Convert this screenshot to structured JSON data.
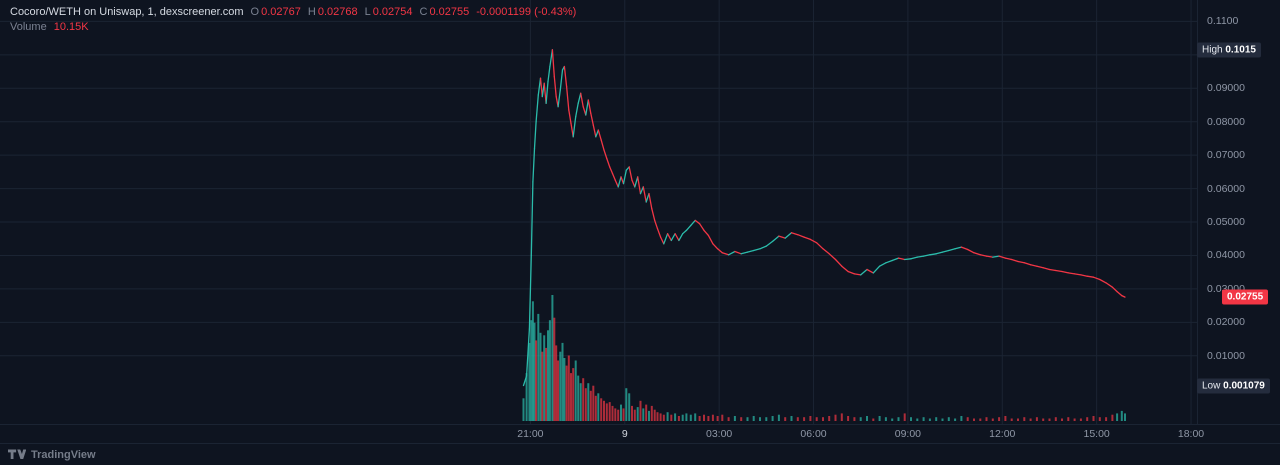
{
  "colors": {
    "background": "#0e1420",
    "grid": "#1b2433",
    "up": "#2bbcab",
    "down": "#f23645",
    "axis_text": "#8f97a6",
    "legend_text": "#d5dae2",
    "legend_label": "#7b8292",
    "badge_bg": "#242c3d",
    "badge_text": "#e6e9ef",
    "last_badge_bg": "#f23645",
    "footer_text": "#757c89",
    "strong_tick": "#d2d6de"
  },
  "header": {
    "symbol": "Cocoro/WETH on Uniswap, 1, dexscreener.com",
    "open_label": "O",
    "open": "0.02767",
    "high_label": "H",
    "high": "0.02768",
    "low_label": "L",
    "low": "0.02754",
    "close_label": "C",
    "close": "0.02755",
    "change": "-0.0001199 (-0.43%)",
    "volume_label": "Volume",
    "volume_value": "10.15K"
  },
  "badges": {
    "high": {
      "label": "High",
      "value": "0.1015",
      "price": 0.1015
    },
    "last": {
      "value": "0.02755",
      "price": 0.02755
    },
    "low": {
      "label": "Low",
      "value": "0.001079",
      "price": 0.001079
    }
  },
  "footer": {
    "brand": "TradingView"
  },
  "chart_data": {
    "type": "line",
    "title": "Cocoro/WETH on Uniswap, 1, dexscreener.com",
    "interval": "1",
    "x_unit": "hours_after_21_00",
    "x_window": [
      -16.86,
      21.19
    ],
    "price_window": [
      -0.0104,
      0.1164
    ],
    "grid": true,
    "high": 0.1015,
    "low": 0.001079,
    "last": 0.02755,
    "x_ticks": [
      {
        "hour": 0,
        "label": "21:00"
      },
      {
        "hour": 3,
        "label": "9",
        "strong": true
      },
      {
        "hour": 6,
        "label": "03:00"
      },
      {
        "hour": 9,
        "label": "06:00"
      },
      {
        "hour": 12,
        "label": "09:00"
      },
      {
        "hour": 15,
        "label": "12:00"
      },
      {
        "hour": 18,
        "label": "15:00"
      },
      {
        "hour": 21,
        "label": "18:00"
      }
    ],
    "y_ticks": [
      {
        "price": 0.11,
        "label": "0.1100"
      },
      {
        "price": 0.1,
        "label": null
      },
      {
        "price": 0.09,
        "label": "0.09000"
      },
      {
        "price": 0.08,
        "label": "0.08000"
      },
      {
        "price": 0.07,
        "label": "0.07000"
      },
      {
        "price": 0.06,
        "label": "0.06000"
      },
      {
        "price": 0.05,
        "label": "0.05000"
      },
      {
        "price": 0.04,
        "label": "0.04000"
      },
      {
        "price": 0.03,
        "label": "0.03000"
      },
      {
        "price": 0.02,
        "label": "0.02000"
      },
      {
        "price": 0.01,
        "label": "0.01000"
      }
    ],
    "price": [
      [
        -0.22,
        0.0011
      ],
      [
        -0.12,
        0.004
      ],
      [
        -0.03,
        0.018
      ],
      [
        0.03,
        0.04
      ],
      [
        0.08,
        0.062
      ],
      [
        0.13,
        0.072
      ],
      [
        0.18,
        0.08
      ],
      [
        0.25,
        0.088
      ],
      [
        0.32,
        0.093
      ],
      [
        0.38,
        0.0875
      ],
      [
        0.44,
        0.0915
      ],
      [
        0.5,
        0.0855
      ],
      [
        0.56,
        0.092
      ],
      [
        0.62,
        0.0965
      ],
      [
        0.7,
        0.1015
      ],
      [
        0.76,
        0.0935
      ],
      [
        0.82,
        0.0875
      ],
      [
        0.88,
        0.0845
      ],
      [
        0.95,
        0.0895
      ],
      [
        1.02,
        0.0955
      ],
      [
        1.08,
        0.0965
      ],
      [
        1.15,
        0.0905
      ],
      [
        1.22,
        0.0835
      ],
      [
        1.29,
        0.0795
      ],
      [
        1.36,
        0.0755
      ],
      [
        1.44,
        0.0815
      ],
      [
        1.52,
        0.0855
      ],
      [
        1.6,
        0.0885
      ],
      [
        1.68,
        0.0845
      ],
      [
        1.76,
        0.082
      ],
      [
        1.84,
        0.0865
      ],
      [
        1.92,
        0.0825
      ],
      [
        2.0,
        0.079
      ],
      [
        2.08,
        0.0755
      ],
      [
        2.16,
        0.0775
      ],
      [
        2.25,
        0.0745
      ],
      [
        2.34,
        0.0715
      ],
      [
        2.43,
        0.069
      ],
      [
        2.52,
        0.0665
      ],
      [
        2.61,
        0.0645
      ],
      [
        2.7,
        0.0625
      ],
      [
        2.79,
        0.0605
      ],
      [
        2.88,
        0.0635
      ],
      [
        2.96,
        0.0615
      ],
      [
        3.05,
        0.0655
      ],
      [
        3.14,
        0.0665
      ],
      [
        3.23,
        0.0625
      ],
      [
        3.32,
        0.0605
      ],
      [
        3.41,
        0.0635
      ],
      [
        3.5,
        0.0585
      ],
      [
        3.59,
        0.0605
      ],
      [
        3.68,
        0.056
      ],
      [
        3.77,
        0.0585
      ],
      [
        3.86,
        0.054
      ],
      [
        3.95,
        0.0505
      ],
      [
        4.04,
        0.048
      ],
      [
        4.14,
        0.0455
      ],
      [
        4.24,
        0.0435
      ],
      [
        4.36,
        0.0465
      ],
      [
        4.48,
        0.0445
      ],
      [
        4.6,
        0.0465
      ],
      [
        4.72,
        0.0445
      ],
      [
        4.84,
        0.0465
      ],
      [
        4.96,
        0.0475
      ],
      [
        5.1,
        0.049
      ],
      [
        5.24,
        0.0505
      ],
      [
        5.38,
        0.0495
      ],
      [
        5.52,
        0.0475
      ],
      [
        5.66,
        0.046
      ],
      [
        5.8,
        0.0435
      ],
      [
        5.95,
        0.042
      ],
      [
        6.1,
        0.0408
      ],
      [
        6.3,
        0.0402
      ],
      [
        6.5,
        0.0412
      ],
      [
        6.7,
        0.0405
      ],
      [
        6.9,
        0.041
      ],
      [
        7.1,
        0.0415
      ],
      [
        7.3,
        0.042
      ],
      [
        7.5,
        0.0428
      ],
      [
        7.7,
        0.0442
      ],
      [
        7.9,
        0.0458
      ],
      [
        8.1,
        0.0452
      ],
      [
        8.3,
        0.0468
      ],
      [
        8.5,
        0.0462
      ],
      [
        8.7,
        0.0455
      ],
      [
        8.9,
        0.0448
      ],
      [
        9.1,
        0.0438
      ],
      [
        9.3,
        0.042
      ],
      [
        9.5,
        0.0405
      ],
      [
        9.7,
        0.0388
      ],
      [
        9.9,
        0.0368
      ],
      [
        10.1,
        0.0352
      ],
      [
        10.3,
        0.0345
      ],
      [
        10.5,
        0.0342
      ],
      [
        10.7,
        0.0358
      ],
      [
        10.9,
        0.0348
      ],
      [
        11.1,
        0.0368
      ],
      [
        11.3,
        0.0378
      ],
      [
        11.5,
        0.0385
      ],
      [
        11.7,
        0.0392
      ],
      [
        11.9,
        0.0388
      ],
      [
        12.1,
        0.039
      ],
      [
        12.3,
        0.0395
      ],
      [
        12.5,
        0.0398
      ],
      [
        12.7,
        0.0402
      ],
      [
        12.9,
        0.0405
      ],
      [
        13.1,
        0.041
      ],
      [
        13.3,
        0.0415
      ],
      [
        13.5,
        0.042
      ],
      [
        13.7,
        0.0425
      ],
      [
        13.9,
        0.0418
      ],
      [
        14.1,
        0.0408
      ],
      [
        14.3,
        0.0402
      ],
      [
        14.5,
        0.0398
      ],
      [
        14.7,
        0.0395
      ],
      [
        14.9,
        0.0398
      ],
      [
        15.1,
        0.0392
      ],
      [
        15.3,
        0.0388
      ],
      [
        15.5,
        0.0382
      ],
      [
        15.7,
        0.0378
      ],
      [
        15.9,
        0.0372
      ],
      [
        16.1,
        0.0368
      ],
      [
        16.3,
        0.0363
      ],
      [
        16.5,
        0.0358
      ],
      [
        16.7,
        0.0355
      ],
      [
        16.9,
        0.0352
      ],
      [
        17.1,
        0.0348
      ],
      [
        17.3,
        0.0345
      ],
      [
        17.5,
        0.0342
      ],
      [
        17.7,
        0.0338
      ],
      [
        17.9,
        0.0335
      ],
      [
        18.1,
        0.0328
      ],
      [
        18.3,
        0.0318
      ],
      [
        18.5,
        0.0305
      ],
      [
        18.65,
        0.0292
      ],
      [
        18.8,
        0.028
      ],
      [
        18.9,
        0.02755
      ]
    ],
    "volume_rel": [
      [
        -0.22,
        0.18,
        "u"
      ],
      [
        -0.12,
        0.38,
        "u"
      ],
      [
        -0.03,
        0.62,
        "u"
      ],
      [
        0.03,
        0.8,
        "u"
      ],
      [
        0.08,
        0.95,
        "u"
      ],
      [
        0.13,
        0.78,
        "u"
      ],
      [
        0.18,
        0.64,
        "d"
      ],
      [
        0.25,
        0.85,
        "u"
      ],
      [
        0.32,
        0.7,
        "u"
      ],
      [
        0.38,
        0.55,
        "d"
      ],
      [
        0.44,
        0.68,
        "u"
      ],
      [
        0.5,
        0.58,
        "d"
      ],
      [
        0.56,
        0.72,
        "u"
      ],
      [
        0.62,
        0.8,
        "u"
      ],
      [
        0.7,
        1.0,
        "u"
      ],
      [
        0.76,
        0.82,
        "d"
      ],
      [
        0.82,
        0.6,
        "d"
      ],
      [
        0.88,
        0.48,
        "d"
      ],
      [
        0.95,
        0.55,
        "u"
      ],
      [
        1.02,
        0.62,
        "u"
      ],
      [
        1.08,
        0.5,
        "u"
      ],
      [
        1.15,
        0.44,
        "d"
      ],
      [
        1.22,
        0.52,
        "d"
      ],
      [
        1.29,
        0.38,
        "d"
      ],
      [
        1.36,
        0.42,
        "d"
      ],
      [
        1.44,
        0.48,
        "u"
      ],
      [
        1.52,
        0.36,
        "u"
      ],
      [
        1.6,
        0.3,
        "u"
      ],
      [
        1.68,
        0.34,
        "d"
      ],
      [
        1.76,
        0.26,
        "d"
      ],
      [
        1.84,
        0.3,
        "u"
      ],
      [
        1.92,
        0.24,
        "d"
      ],
      [
        2.0,
        0.28,
        "d"
      ],
      [
        2.08,
        0.2,
        "d"
      ],
      [
        2.16,
        0.22,
        "u"
      ],
      [
        2.25,
        0.18,
        "d"
      ],
      [
        2.34,
        0.16,
        "d"
      ],
      [
        2.43,
        0.14,
        "d"
      ],
      [
        2.52,
        0.15,
        "d"
      ],
      [
        2.61,
        0.12,
        "d"
      ],
      [
        2.7,
        0.1,
        "d"
      ],
      [
        2.79,
        0.09,
        "d"
      ],
      [
        2.88,
        0.13,
        "u"
      ],
      [
        2.96,
        0.1,
        "d"
      ],
      [
        3.05,
        0.26,
        "u"
      ],
      [
        3.14,
        0.22,
        "u"
      ],
      [
        3.23,
        0.12,
        "d"
      ],
      [
        3.32,
        0.09,
        "d"
      ],
      [
        3.41,
        0.11,
        "u"
      ],
      [
        3.5,
        0.16,
        "d"
      ],
      [
        3.59,
        0.1,
        "u"
      ],
      [
        3.68,
        0.13,
        "d"
      ],
      [
        3.77,
        0.08,
        "u"
      ],
      [
        3.86,
        0.12,
        "d"
      ],
      [
        3.95,
        0.09,
        "d"
      ],
      [
        4.04,
        0.07,
        "d"
      ],
      [
        4.14,
        0.06,
        "d"
      ],
      [
        4.24,
        0.05,
        "d"
      ],
      [
        4.36,
        0.07,
        "u"
      ],
      [
        4.48,
        0.05,
        "d"
      ],
      [
        4.6,
        0.06,
        "u"
      ],
      [
        4.72,
        0.04,
        "d"
      ],
      [
        4.84,
        0.05,
        "u"
      ],
      [
        4.96,
        0.06,
        "u"
      ],
      [
        5.1,
        0.05,
        "u"
      ],
      [
        5.24,
        0.06,
        "u"
      ],
      [
        5.38,
        0.04,
        "d"
      ],
      [
        5.52,
        0.05,
        "d"
      ],
      [
        5.66,
        0.04,
        "d"
      ],
      [
        5.8,
        0.05,
        "d"
      ],
      [
        5.95,
        0.04,
        "d"
      ],
      [
        6.1,
        0.05,
        "d"
      ],
      [
        6.3,
        0.03,
        "d"
      ],
      [
        6.5,
        0.04,
        "u"
      ],
      [
        6.7,
        0.03,
        "d"
      ],
      [
        6.9,
        0.03,
        "u"
      ],
      [
        7.1,
        0.04,
        "u"
      ],
      [
        7.3,
        0.03,
        "u"
      ],
      [
        7.5,
        0.03,
        "u"
      ],
      [
        7.7,
        0.04,
        "u"
      ],
      [
        7.9,
        0.05,
        "u"
      ],
      [
        8.1,
        0.03,
        "d"
      ],
      [
        8.3,
        0.04,
        "u"
      ],
      [
        8.5,
        0.03,
        "d"
      ],
      [
        8.7,
        0.03,
        "d"
      ],
      [
        8.9,
        0.04,
        "d"
      ],
      [
        9.1,
        0.03,
        "d"
      ],
      [
        9.3,
        0.03,
        "d"
      ],
      [
        9.5,
        0.04,
        "d"
      ],
      [
        9.7,
        0.05,
        "d"
      ],
      [
        9.9,
        0.06,
        "d"
      ],
      [
        10.1,
        0.04,
        "d"
      ],
      [
        10.3,
        0.03,
        "d"
      ],
      [
        10.5,
        0.03,
        "u"
      ],
      [
        10.7,
        0.04,
        "u"
      ],
      [
        10.9,
        0.02,
        "d"
      ],
      [
        11.1,
        0.04,
        "u"
      ],
      [
        11.3,
        0.03,
        "u"
      ],
      [
        11.5,
        0.02,
        "u"
      ],
      [
        11.7,
        0.03,
        "u"
      ],
      [
        11.9,
        0.06,
        "d"
      ],
      [
        12.1,
        0.03,
        "u"
      ],
      [
        12.3,
        0.02,
        "u"
      ],
      [
        12.5,
        0.03,
        "u"
      ],
      [
        12.7,
        0.02,
        "u"
      ],
      [
        12.9,
        0.03,
        "u"
      ],
      [
        13.1,
        0.02,
        "u"
      ],
      [
        13.3,
        0.03,
        "u"
      ],
      [
        13.5,
        0.02,
        "u"
      ],
      [
        13.7,
        0.04,
        "u"
      ],
      [
        13.9,
        0.03,
        "d"
      ],
      [
        14.1,
        0.02,
        "d"
      ],
      [
        14.3,
        0.02,
        "d"
      ],
      [
        14.5,
        0.03,
        "d"
      ],
      [
        14.7,
        0.02,
        "d"
      ],
      [
        14.9,
        0.03,
        "d"
      ],
      [
        15.1,
        0.04,
        "d"
      ],
      [
        15.3,
        0.02,
        "d"
      ],
      [
        15.5,
        0.02,
        "d"
      ],
      [
        15.7,
        0.03,
        "d"
      ],
      [
        15.9,
        0.02,
        "d"
      ],
      [
        16.1,
        0.03,
        "d"
      ],
      [
        16.3,
        0.02,
        "d"
      ],
      [
        16.5,
        0.02,
        "d"
      ],
      [
        16.7,
        0.03,
        "d"
      ],
      [
        16.9,
        0.02,
        "d"
      ],
      [
        17.1,
        0.03,
        "d"
      ],
      [
        17.3,
        0.02,
        "d"
      ],
      [
        17.5,
        0.02,
        "d"
      ],
      [
        17.7,
        0.03,
        "d"
      ],
      [
        17.9,
        0.04,
        "d"
      ],
      [
        18.1,
        0.03,
        "d"
      ],
      [
        18.3,
        0.03,
        "d"
      ],
      [
        18.5,
        0.05,
        "d"
      ],
      [
        18.65,
        0.06,
        "u"
      ],
      [
        18.8,
        0.08,
        "u"
      ],
      [
        18.9,
        0.06,
        "u"
      ]
    ]
  }
}
